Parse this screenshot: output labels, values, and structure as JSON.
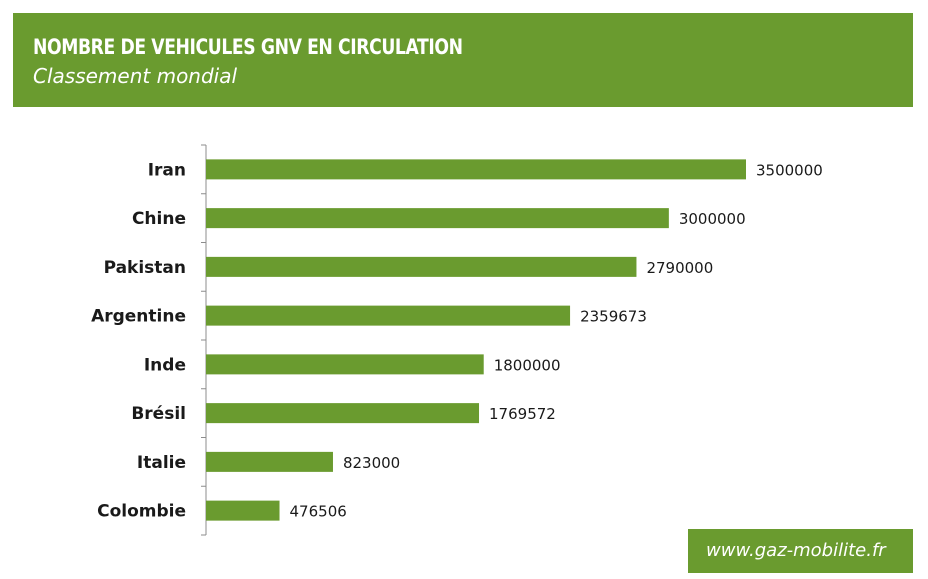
{
  "header": {
    "title": "NOMBRE DE VEHICULES GNV EN CIRCULATION",
    "subtitle": "Classement mondial"
  },
  "footer": {
    "source": "www.gaz-mobilite.fr"
  },
  "colors": {
    "accent": "#6a9b2f",
    "bar": "#6a9b2f",
    "text": "#1a1a1a",
    "axis": "#8c8c8c"
  },
  "chart_data": {
    "type": "bar",
    "orientation": "horizontal",
    "categories": [
      "Iran",
      "Chine",
      "Pakistan",
      "Argentine",
      "Inde",
      "Brésil",
      "Italie",
      "Colombie"
    ],
    "values": [
      3500000,
      3000000,
      2790000,
      2359673,
      1800000,
      1769572,
      823000,
      476506
    ],
    "value_labels": [
      "3500000",
      "3000000",
      "2790000",
      "2359673",
      "1800000",
      "1769572",
      "823000",
      "476506"
    ],
    "title": "NOMBRE DE VEHICULES GNV EN CIRCULATION",
    "subtitle": "Classement mondial",
    "xlabel": "",
    "ylabel": "",
    "xlim": [
      0,
      3500000
    ],
    "grid": false,
    "legend": false
  }
}
